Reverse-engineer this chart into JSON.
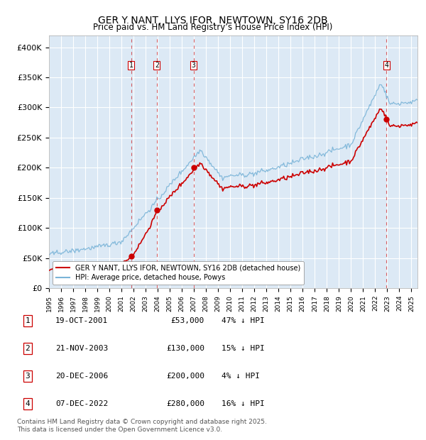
{
  "title": "GER Y NANT, LLYS IFOR, NEWTOWN, SY16 2DB",
  "subtitle": "Price paid vs. HM Land Registry’s House Price Index (HPI)",
  "ylim": [
    0,
    420000
  ],
  "yticks": [
    0,
    50000,
    100000,
    150000,
    200000,
    250000,
    300000,
    350000,
    400000
  ],
  "ytick_labels": [
    "£0",
    "£50K",
    "£100K",
    "£150K",
    "£200K",
    "£250K",
    "£300K",
    "£350K",
    "£400K"
  ],
  "bg_color": "#dce9f5",
  "grid_color": "#ffffff",
  "hpi_color": "#7ab4d8",
  "price_color": "#cc0000",
  "vline_color": "#cc0000",
  "transactions": [
    {
      "num": 1,
      "date_x": 2001.8,
      "price": 53000,
      "label": "1"
    },
    {
      "num": 2,
      "date_x": 2003.92,
      "price": 130000,
      "label": "2"
    },
    {
      "num": 3,
      "date_x": 2006.97,
      "price": 200000,
      "label": "3"
    },
    {
      "num": 4,
      "date_x": 2022.93,
      "price": 280000,
      "label": "4"
    }
  ],
  "legend_entries": [
    "GER Y NANT, LLYS IFOR, NEWTOWN, SY16 2DB (detached house)",
    "HPI: Average price, detached house, Powys"
  ],
  "table_rows": [
    {
      "num": "1",
      "date": "19-OCT-2001",
      "price": "£53,000",
      "hpi": "47% ↓ HPI"
    },
    {
      "num": "2",
      "date": "21-NOV-2003",
      "price": "£130,000",
      "hpi": "15% ↓ HPI"
    },
    {
      "num": "3",
      "date": "20-DEC-2006",
      "price": "£200,000",
      "hpi": "4% ↓ HPI"
    },
    {
      "num": "4",
      "date": "07-DEC-2022",
      "price": "£280,000",
      "hpi": "16% ↓ HPI"
    }
  ],
  "footer": "Contains HM Land Registry data © Crown copyright and database right 2025.\nThis data is licensed under the Open Government Licence v3.0.",
  "xmin": 1995,
  "xmax": 2025.5
}
